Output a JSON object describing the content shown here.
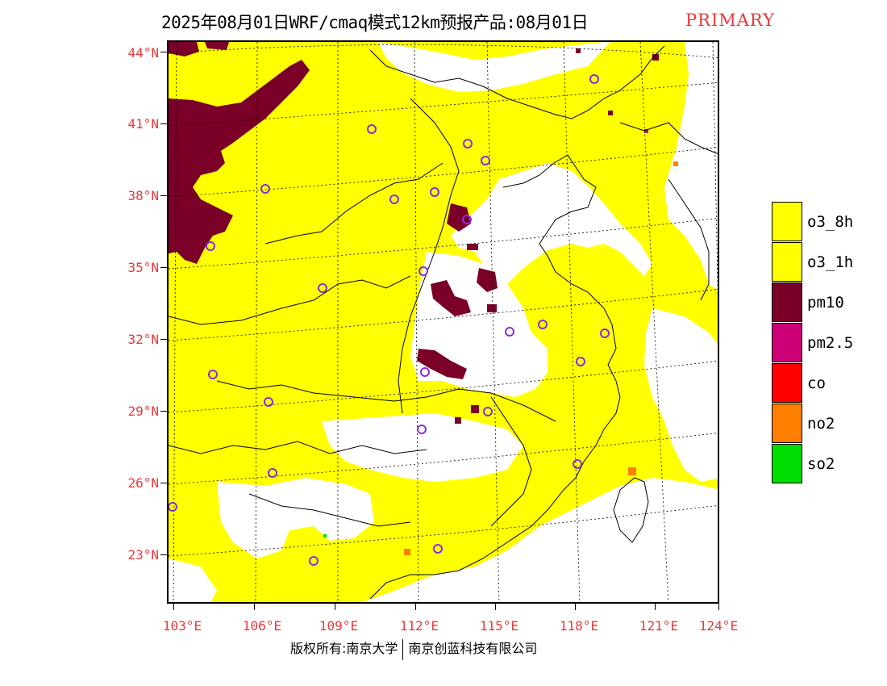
{
  "header": {
    "title": "2025年08月01日WRF/cmaq模式12km预报产品:08月01日",
    "tag": "PRIMARY"
  },
  "axes": {
    "lat_labels": [
      "44°N",
      "41°N",
      "38°N",
      "35°N",
      "32°N",
      "29°N",
      "26°N",
      "23°N"
    ],
    "lon_labels": [
      "103°E",
      "106°E",
      "109°E",
      "112°E",
      "115°E",
      "118°E",
      "121°E",
      "124°E"
    ]
  },
  "legend": {
    "items": [
      {
        "label": "o3_8h",
        "color": "#ffff00"
      },
      {
        "label": "o3_1h",
        "color": "#ffff00"
      },
      {
        "label": "pm10",
        "color": "#7a0028"
      },
      {
        "label": "pm2.5",
        "color": "#cc0077"
      },
      {
        "label": "co",
        "color": "#ff0000"
      },
      {
        "label": "no2",
        "color": "#ff7f00"
      },
      {
        "label": "so2",
        "color": "#00dd00"
      }
    ]
  },
  "footer": {
    "copyright_left": "版权所有:南京大学",
    "copyright_right": "南京创蓝科技有限公司"
  },
  "map": {
    "base_color": "#ffff00",
    "clean_color": "#ffffff",
    "pm10_color": "#7a0028",
    "city_marker_color": "#8a2be2"
  }
}
